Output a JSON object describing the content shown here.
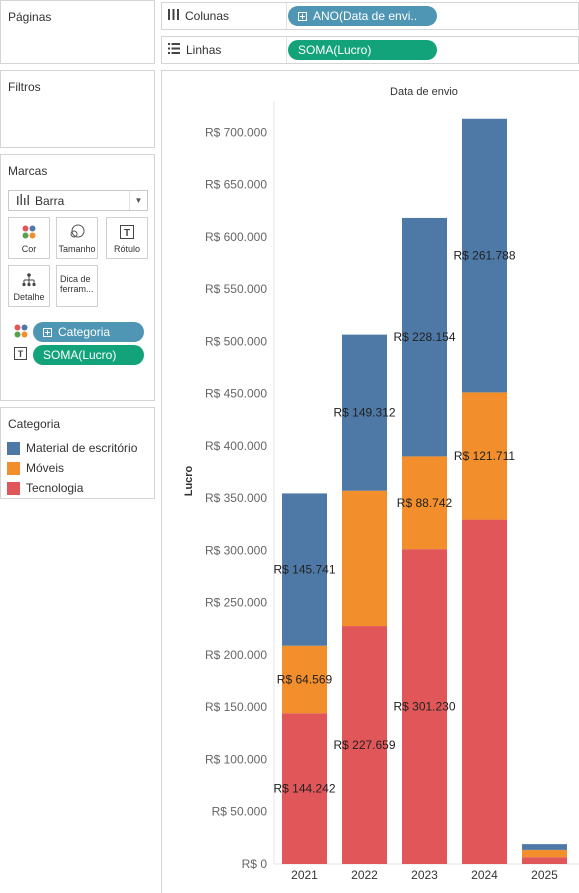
{
  "pages_card": {
    "title": "Páginas"
  },
  "filters_card": {
    "title": "Filtros"
  },
  "marks_card": {
    "title": "Marcas",
    "mark_type": "Barra",
    "buttons": {
      "color": "Cor",
      "size": "Tamanho",
      "label": "Rótulo",
      "detail": "Detalhe",
      "tooltip": "Dica de ferram..."
    },
    "fields": [
      {
        "icon": "color-dots-icon",
        "label": "Categoria",
        "color": "#4e96b4"
      },
      {
        "icon": "text-label-icon",
        "label": "SOMA(Lucro)",
        "color": "#13a37a"
      }
    ]
  },
  "legend": {
    "title": "Categoria",
    "items": [
      {
        "label": "Material de escritório",
        "color": "#4e79a7"
      },
      {
        "label": "Móveis",
        "color": "#f28e2b"
      },
      {
        "label": "Tecnologia",
        "color": "#e15759"
      }
    ]
  },
  "shelves": {
    "columns": {
      "label": "Colunas",
      "pill": "ANO(Data de envi..",
      "color": "#4e96b4"
    },
    "rows": {
      "label": "Linhas",
      "pill": "SOMA(Lucro)",
      "color": "#13a37a"
    }
  },
  "chart_data": {
    "type": "bar",
    "stacked": true,
    "header": "Data de envio",
    "ylabel": "Lucro",
    "ylim": [
      0,
      730000
    ],
    "yticks": [
      0,
      50000,
      100000,
      150000,
      200000,
      250000,
      300000,
      350000,
      400000,
      450000,
      500000,
      550000,
      600000,
      650000,
      700000
    ],
    "ytick_labels": [
      "R$ 0",
      "R$ 50.000",
      "R$ 100.000",
      "R$ 150.000",
      "R$ 200.000",
      "R$ 250.000",
      "R$ 300.000",
      "R$ 350.000",
      "R$ 400.000",
      "R$ 450.000",
      "R$ 500.000",
      "R$ 550.000",
      "R$ 600.000",
      "R$ 650.000",
      "R$ 700.000"
    ],
    "categories": [
      "2021",
      "2022",
      "2023",
      "2024",
      "2025"
    ],
    "series": [
      {
        "name": "Tecnologia",
        "color": "#e15759",
        "values": [
          144242,
          227659,
          301230,
          329500,
          6500
        ],
        "labels": [
          "R$ 144.242",
          "R$ 227.659",
          "R$ 301.230",
          "",
          ""
        ]
      },
      {
        "name": "Móveis",
        "color": "#f28e2b",
        "values": [
          64569,
          129500,
          88742,
          121711,
          7000
        ],
        "labels": [
          "R$ 64.569",
          "",
          "R$ 88.742",
          "R$ 121.711",
          ""
        ]
      },
      {
        "name": "Material de escritório",
        "color": "#4e79a7",
        "values": [
          145741,
          149312,
          228154,
          261788,
          5500
        ],
        "labels": [
          "R$ 145.741",
          "R$ 149.312",
          "R$ 228.154",
          "R$ 261.788",
          ""
        ]
      }
    ]
  }
}
